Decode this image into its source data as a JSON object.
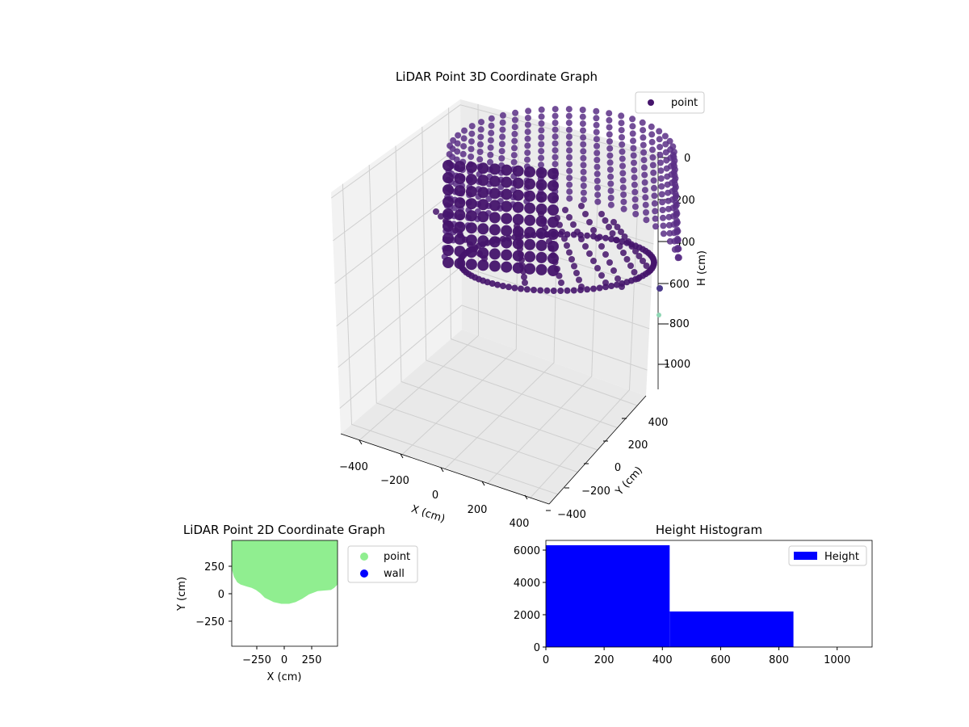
{
  "colors": {
    "point3d": "#45146b",
    "point3d_light": "#5a2f86",
    "point2d": "#90ee90",
    "wall": "#0000ff",
    "hist": "#0000ff",
    "pane_left": "#f2f2f2",
    "pane_right": "#ebebeb",
    "pane_floor": "#e9e9e9",
    "grid": "#cfcfcf"
  },
  "chart_data": [
    {
      "type": "scatter",
      "title": "LiDAR Point 3D Coordinate Graph",
      "xlabel": "X (cm)",
      "ylabel": "Y (cm)",
      "zlabel": "H (cm)",
      "x_ticks": [
        "−400",
        "−200",
        "0",
        "200",
        "400"
      ],
      "y_ticks": [
        "−400",
        "−200",
        "0",
        "200",
        "400"
      ],
      "z_ticks": [
        "0",
        "200",
        "400",
        "600",
        "800",
        "1000"
      ],
      "xlim": [
        -500,
        500
      ],
      "ylim": [
        -500,
        500
      ],
      "zlim": [
        0,
        1100
      ],
      "z_inverted": true,
      "grid": true,
      "legend": {
        "position": "top-right",
        "entries": [
          {
            "label": "point",
            "color": "#45146b"
          }
        ]
      },
      "point_description": "dense ring of points sweeping around the scanner, heights roughly 0 to 700 cm",
      "series": [
        {
          "name": "point",
          "sample_points": [
            [
              -300,
              300,
              60
            ],
            [
              -150,
              420,
              20
            ],
            [
              0,
              450,
              10
            ],
            [
              150,
              420,
              20
            ],
            [
              300,
              300,
              40
            ],
            [
              420,
              100,
              120
            ],
            [
              430,
              -100,
              250
            ],
            [
              350,
              -250,
              380
            ],
            [
              200,
              -350,
              500
            ],
            [
              0,
              -380,
              560
            ],
            [
              -200,
              -330,
              520
            ],
            [
              -350,
              -200,
              420
            ],
            [
              -420,
              0,
              300
            ],
            [
              -380,
              180,
              180
            ],
            [
              450,
              300,
              640
            ],
            [
              430,
              350,
              760
            ]
          ]
        }
      ]
    },
    {
      "type": "scatter",
      "title": "LiDAR Point 2D Coordinate Graph",
      "xlabel": "X (cm)",
      "ylabel": "Y (cm)",
      "x_ticks": [
        "−250",
        "0",
        "250"
      ],
      "y_ticks": [
        "250",
        "0",
        "−250"
      ],
      "xlim": [
        -480,
        480
      ],
      "ylim": [
        -480,
        480
      ],
      "legend": {
        "position": "outside-right",
        "entries": [
          {
            "label": "point",
            "color": "#90ee90"
          },
          {
            "label": "wall",
            "color": "#0000ff"
          }
        ]
      },
      "region_description": "filled cloud of points covering the upper half of the plot (y from about -90 to 480)",
      "series": [
        {
          "name": "point",
          "outline": [
            [
              -480,
              480
            ],
            [
              480,
              480
            ],
            [
              480,
              80
            ],
            [
              450,
              50
            ],
            [
              420,
              30
            ],
            [
              300,
              20
            ],
            [
              220,
              -10
            ],
            [
              160,
              -50
            ],
            [
              100,
              -80
            ],
            [
              40,
              -95
            ],
            [
              -30,
              -95
            ],
            [
              -100,
              -80
            ],
            [
              -180,
              -40
            ],
            [
              -220,
              0
            ],
            [
              -260,
              30
            ],
            [
              -300,
              50
            ],
            [
              -340,
              60
            ],
            [
              -400,
              80
            ],
            [
              -430,
              100
            ],
            [
              -460,
              150
            ],
            [
              -480,
              220
            ],
            [
              -480,
              480
            ]
          ]
        },
        {
          "name": "wall",
          "outline": []
        }
      ]
    },
    {
      "type": "bar",
      "title": "Height Histogram",
      "xlabel": "",
      "ylabel": "",
      "x_ticks": [
        "0",
        "200",
        "400",
        "600",
        "800",
        "1000"
      ],
      "y_ticks": [
        "0",
        "2000",
        "4000",
        "6000"
      ],
      "xlim": [
        0,
        1120
      ],
      "ylim": [
        0,
        6600
      ],
      "legend": {
        "position": "top-right",
        "entries": [
          {
            "label": "Height",
            "color": "#0000ff"
          }
        ]
      },
      "bins": [
        {
          "start": 0,
          "end": 425,
          "count": 6300
        },
        {
          "start": 425,
          "end": 850,
          "count": 2200
        }
      ]
    }
  ]
}
